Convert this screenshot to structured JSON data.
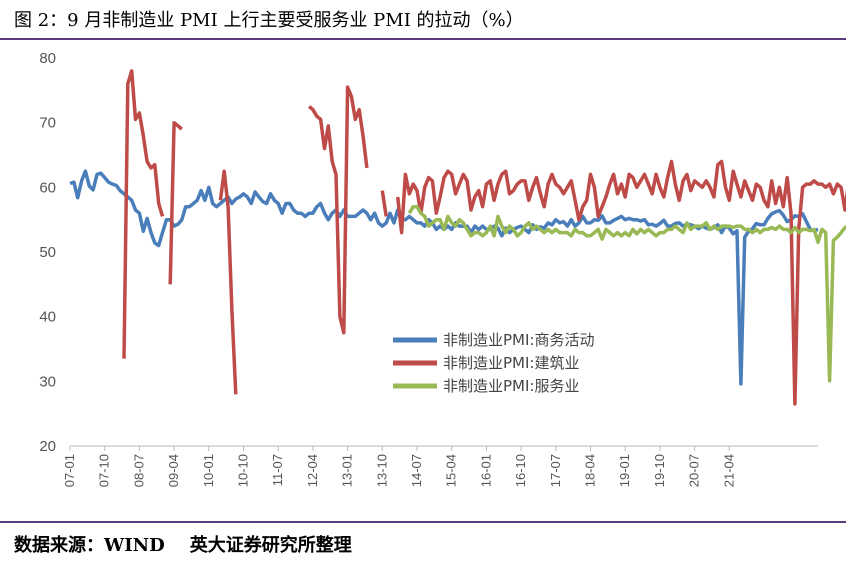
{
  "header": {
    "title": "图 2：9 月非制造业 PMI 上行主要受服务业 PMI 的拉动（%）"
  },
  "footer": {
    "source": "数据来源：WIND    英大证券研究所整理"
  },
  "colors": {
    "business": "#4a7ebb",
    "construction": "#be4b48",
    "service": "#98b954"
  },
  "chart_data": {
    "type": "line",
    "ylim": [
      20,
      80
    ],
    "yticks": [
      20,
      30,
      40,
      50,
      60,
      70,
      80
    ],
    "x_categories": [
      "07-01",
      "07-10",
      "08-07",
      "09-04",
      "10-01",
      "10-10",
      "11-07",
      "12-04",
      "13-01",
      "13-10",
      "14-07",
      "15-04",
      "16-01",
      "16-10",
      "17-07",
      "18-04",
      "19-01",
      "19-10",
      "20-07",
      "21-04"
    ],
    "grid": false,
    "legend": "center-right",
    "series": [
      {
        "name": "非制造业PMI:商务活动",
        "start_index": 0,
        "values": [
          60.6,
          60.8,
          58.4,
          61.0,
          62.5,
          60.2,
          59.6,
          62.0,
          62.2,
          61.5,
          60.8,
          60.5,
          60.3,
          59.5,
          59.0,
          58.5,
          58.0,
          56.5,
          56.0,
          53.2,
          55.2,
          53.0,
          51.4,
          51.0,
          53.0,
          55.0,
          55.0,
          54.0,
          54.3,
          55.0,
          57.0,
          57.0,
          57.5,
          58.0,
          59.5,
          58.0,
          60.0,
          57.5,
          57.0,
          57.5,
          58.0,
          58.5,
          57.5,
          58.2,
          58.5,
          59.0,
          58.5,
          57.5,
          59.3,
          58.5,
          57.8,
          57.5,
          59.0,
          58.0,
          57.5,
          56.0,
          57.5,
          57.5,
          56.5,
          56.0,
          56.0,
          55.5,
          56.0,
          56.0,
          57.0,
          57.5,
          56.0,
          55.0,
          56.0,
          56.5,
          55.5,
          56.5,
          55.5,
          55.5,
          55.5,
          56.0,
          56.5,
          56.0,
          55.0,
          56.0,
          54.5,
          54.0,
          54.5,
          56.0,
          54.5,
          56.5,
          55.0,
          55.0,
          55.5,
          55.0,
          54.5,
          54.5,
          54.0,
          55.0,
          54.5,
          53.5,
          54.0,
          53.5,
          54.0,
          53.5,
          54.5,
          54.0,
          54.0,
          54.0,
          53.0,
          54.0,
          53.5,
          54.0,
          53.5,
          53.5,
          54.0,
          53.7,
          52.5,
          53.7,
          53.0,
          53.5,
          53.8,
          54.0,
          53.5,
          53.0,
          54.2,
          53.5,
          53.9,
          53.7,
          54.5,
          54.2,
          55.0,
          54.5,
          54.7,
          54.0,
          55.0,
          54.0,
          54.5,
          55.5,
          54.5,
          54.5,
          55.0,
          54.9,
          55.6,
          54.5,
          54.5,
          54.9,
          55.2,
          55.5,
          55.0,
          55.2,
          55.0,
          55.0,
          54.8,
          55.0,
          54.2,
          54.3,
          54.0,
          54.4,
          54.9,
          54.0,
          54.0,
          54.4,
          54.5,
          54.0,
          54.3,
          54.2,
          54.0,
          53.6,
          54.0,
          53.7,
          53.5,
          53.8,
          54.2,
          53.0,
          54.0,
          53.7,
          52.8,
          53.3,
          29.6,
          52.3,
          53.2,
          53.6,
          54.4,
          54.2,
          54.2,
          55.2,
          55.9,
          56.2,
          56.4,
          55.7,
          54.7,
          55.0,
          55.6,
          55.5,
          55.9,
          54.7,
          53.5,
          53.3,
          53.5
        ]
      },
      {
        "name": "非制造业PMI:建筑业",
        "start_index": 0,
        "values": [
          null,
          null,
          null,
          null,
          null,
          null,
          null,
          null,
          null,
          null,
          null,
          null,
          null,
          null,
          33.5,
          76.0,
          78.0,
          70.5,
          71.5,
          68.0,
          64.0,
          63.0,
          63.5,
          57.5,
          55.5,
          null,
          45.0,
          70.0,
          69.5,
          69.0,
          null,
          null,
          null,
          null,
          null,
          null,
          null,
          null,
          null,
          58.0,
          62.5,
          57.0,
          41.0,
          28.0,
          null,
          null,
          null,
          null,
          null,
          null,
          null,
          null,
          null,
          null,
          null,
          null,
          null,
          null,
          null,
          null,
          null,
          null,
          72.5,
          72.0,
          71.0,
          70.5,
          66.0,
          69.5,
          64.0,
          62.0,
          40.0,
          37.5,
          75.5,
          74.0,
          70.5,
          72.0,
          68.0,
          63.0,
          null,
          null,
          null,
          59.5,
          55.5,
          null,
          null,
          58.5,
          53.0,
          62.0,
          59.0,
          60.5,
          59.5,
          56.0,
          60.0,
          61.5,
          61.0,
          56.0,
          58.5,
          61.5,
          62.5,
          62.0,
          59.0,
          60.5,
          62.0,
          61.0,
          56.5,
          58.5,
          59.5,
          57.0,
          60.5,
          61.0,
          58.0,
          60.5,
          62.0,
          62.5,
          59.0,
          59.5,
          60.5,
          61.0,
          61.0,
          58.0,
          60.0,
          61.5,
          59.0,
          57.0,
          60.5,
          62.0,
          60.5,
          60.0,
          59.0,
          60.0,
          61.0,
          58.0,
          55.0,
          57.0,
          58.0,
          62.0,
          60.0,
          55.5,
          57.0,
          58.5,
          60.5,
          62.0,
          59.0,
          60.5,
          58.5,
          62.0,
          61.5,
          60.0,
          61.0,
          62.0,
          60.5,
          59.0,
          62.0,
          60.0,
          58.5,
          61.5,
          64.0,
          60.5,
          58.0,
          61.0,
          62.0,
          59.5,
          61.0,
          60.5,
          60.0,
          61.0,
          60.0,
          58.5,
          63.5,
          64.0,
          60.0,
          58.0,
          62.5,
          60.5,
          58.5,
          61.0,
          59.5,
          58.0,
          60.5,
          60.0,
          58.0,
          57.0,
          61.0,
          57.5,
          60.0,
          57.0,
          61.5,
          56.0,
          26.5,
          53.5,
          60.0,
          60.5,
          60.5,
          61.0,
          60.5,
          60.5,
          60.0,
          60.5,
          59.0,
          60.5,
          60.0,
          56.5,
          61.0,
          62.5,
          57.5,
          60.5,
          60.0,
          56.5,
          60.5,
          57.5
        ]
      },
      {
        "name": "非制造业PMI:服务业",
        "start_index": 88,
        "values": [
          56.0,
          57.0,
          57.0,
          56.0,
          55.5,
          54.0,
          54.5,
          55.0,
          55.0,
          53.5,
          55.5,
          54.5,
          54.0,
          55.0,
          54.5,
          53.5,
          52.5,
          53.0,
          53.0,
          52.5,
          53.0,
          54.0,
          52.5,
          55.5,
          54.0,
          53.0,
          54.0,
          53.5,
          52.5,
          53.0,
          54.0,
          54.5,
          53.5,
          54.0,
          53.5,
          53.0,
          53.5,
          53.0,
          53.5,
          53.0,
          53.0,
          53.0,
          52.5,
          53.5,
          53.0,
          53.0,
          52.5,
          52.5,
          53.0,
          53.5,
          52.0,
          53.5,
          53.0,
          52.5,
          53.0,
          52.5,
          53.0,
          52.5,
          53.5,
          52.8,
          53.5,
          53.0,
          53.5,
          53.0,
          52.5,
          53.0,
          53.0,
          53.5,
          53.5,
          54.0,
          53.5,
          53.0,
          54.5,
          53.5,
          54.0,
          54.0,
          54.0,
          54.5,
          53.5,
          54.0,
          53.5,
          54.0,
          54.0,
          54.0,
          53.8,
          54.0,
          54.0,
          53.5,
          53.5,
          53.0,
          53.5,
          53.0,
          53.5,
          53.5,
          53.8,
          53.5,
          54.0,
          53.5,
          53.5,
          53.0,
          53.8,
          53.0,
          53.5,
          53.5,
          53.3,
          53.5,
          51.5,
          53.5,
          53.0,
          30.1,
          51.8,
          52.3,
          53.0,
          53.8,
          54.0,
          54.0,
          54.5,
          55.0,
          55.5,
          55.8,
          55.5,
          51.4,
          51.0,
          55.0,
          55.2,
          55.5,
          54.3,
          52.3,
          45.2,
          52.4
        ]
      }
    ]
  }
}
